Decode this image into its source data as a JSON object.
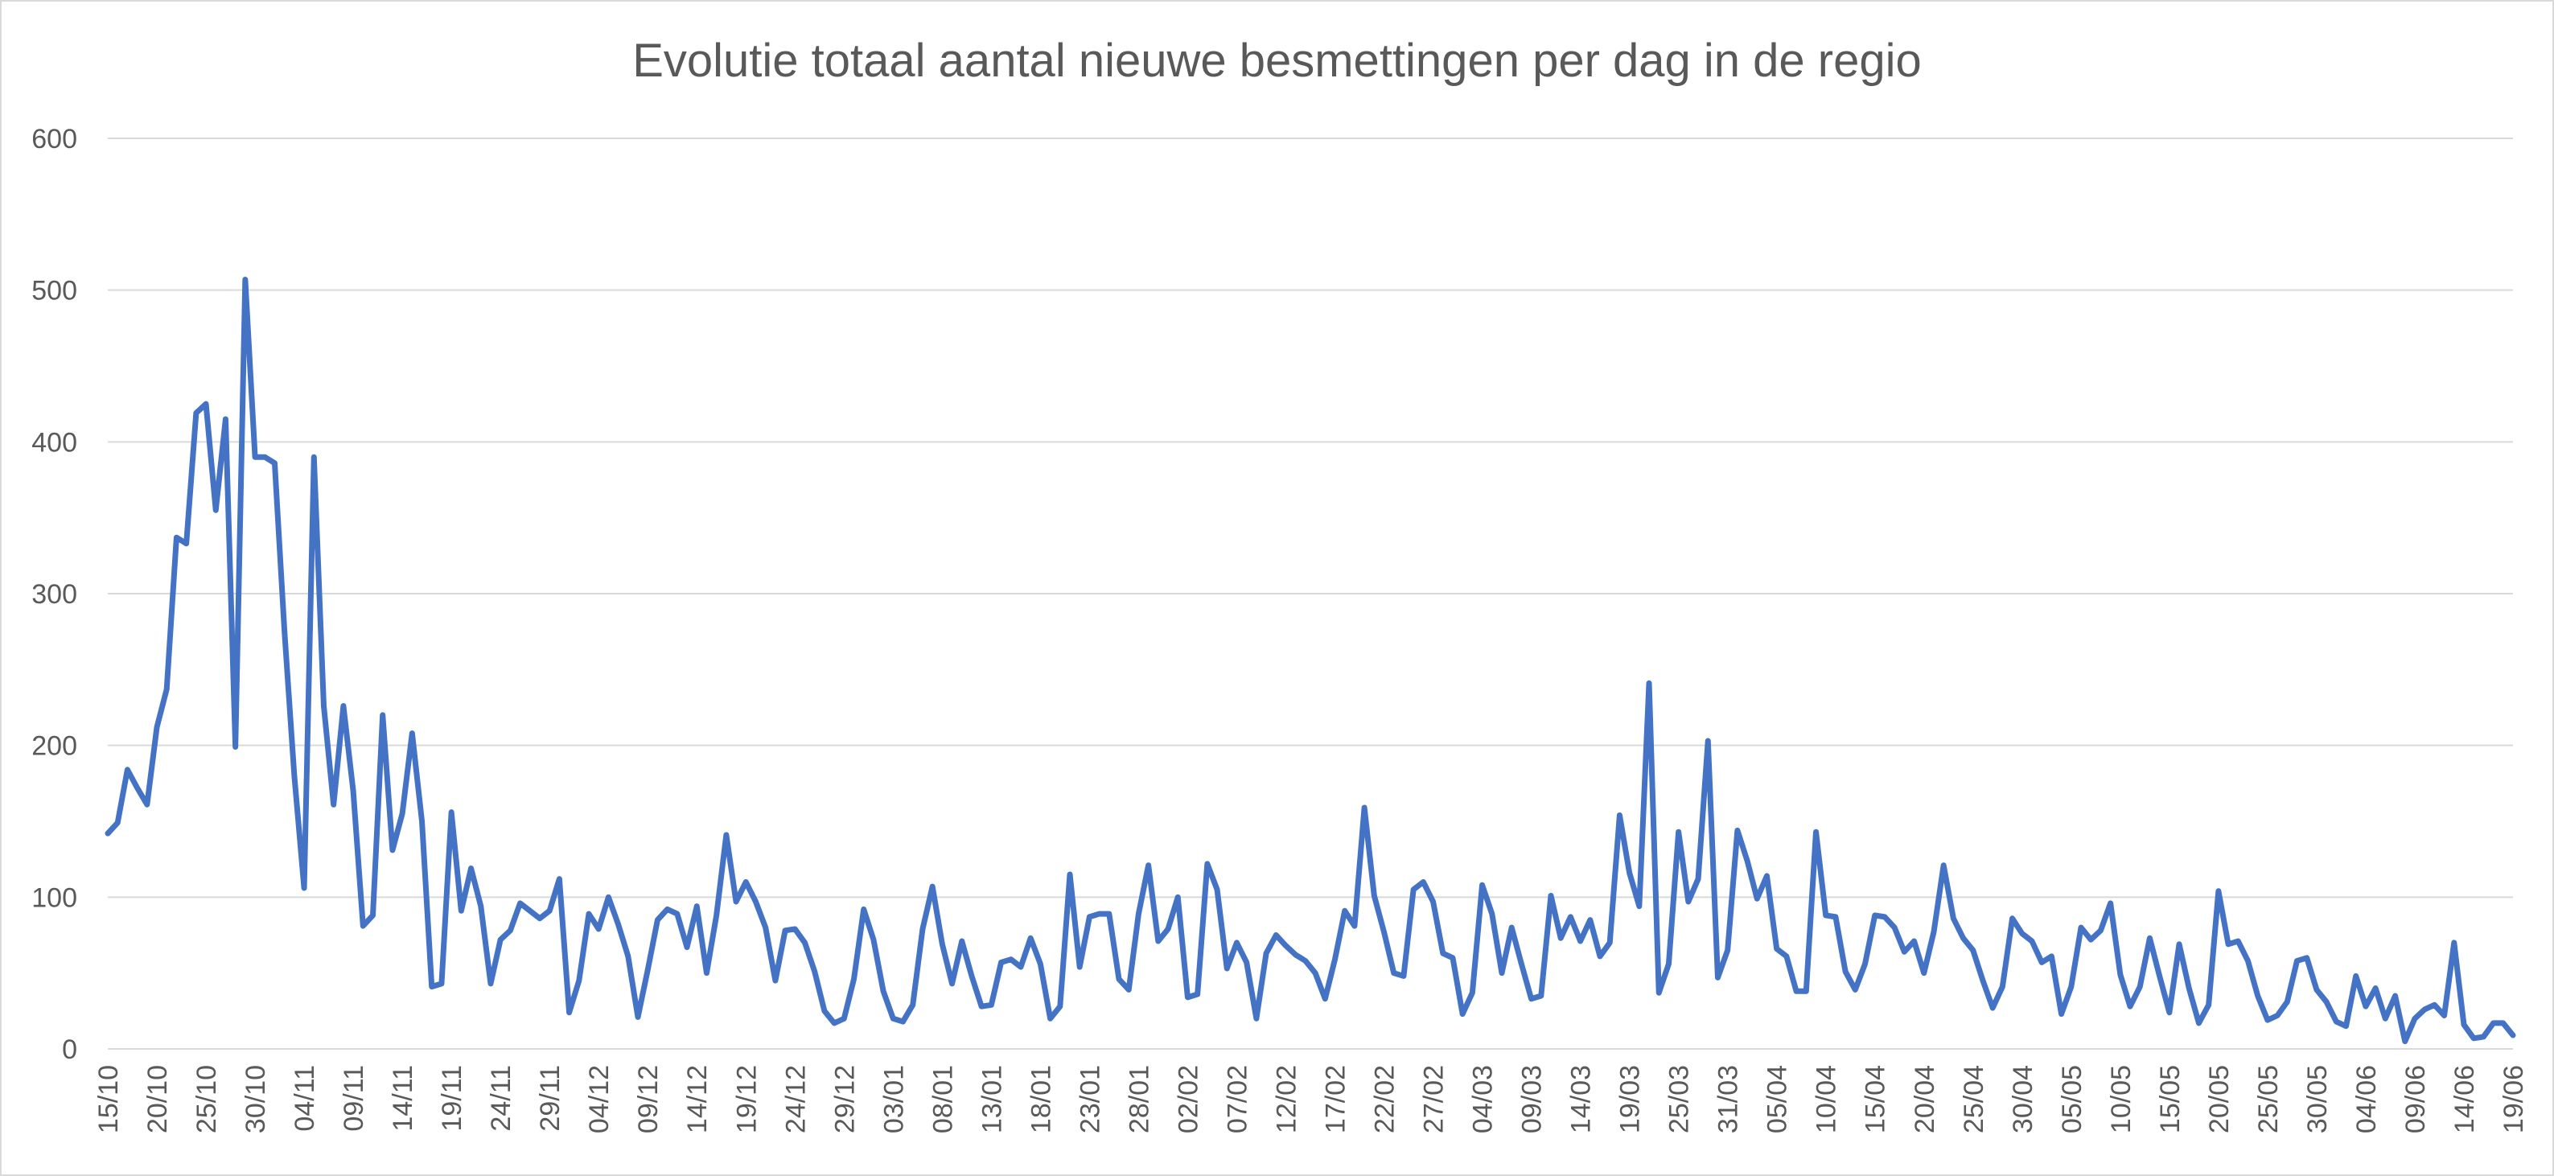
{
  "chart_data": {
    "type": "line",
    "title": "Evolutie totaal aantal nieuwe besmettingen per dag in de regio",
    "xlabel": "",
    "ylabel": "",
    "ylim": [
      0,
      600
    ],
    "yticks": [
      0,
      100,
      200,
      300,
      400,
      500,
      600
    ],
    "grid": true,
    "legend": "none",
    "line_color": "#4472c4",
    "grid_color": "#d9d9d9",
    "text_color": "#595959",
    "x_start": "15/10",
    "x_end": "19/06",
    "x_tick_labels": [
      "15/10",
      "20/10",
      "25/10",
      "30/10",
      "04/11",
      "09/11",
      "14/11",
      "19/11",
      "24/11",
      "29/11",
      "04/12",
      "09/12",
      "14/12",
      "19/12",
      "24/12",
      "29/12",
      "03/01",
      "08/01",
      "13/01",
      "18/01",
      "23/01",
      "28/01",
      "02/02",
      "07/02",
      "12/02",
      "17/02",
      "22/02",
      "27/02",
      "04/03",
      "09/03",
      "14/03",
      "19/03",
      "25/03",
      "31/03",
      "05/04",
      "10/04",
      "15/04",
      "20/04",
      "25/04",
      "30/04",
      "05/05",
      "10/05",
      "15/05",
      "20/05",
      "25/05",
      "30/05",
      "04/06",
      "09/06",
      "14/06",
      "19/06"
    ],
    "values": [
      142,
      149,
      184,
      172,
      161,
      212,
      237,
      337,
      333,
      419,
      425,
      355,
      415,
      199,
      507,
      390,
      390,
      386,
      275,
      180,
      106,
      390,
      226,
      161,
      226,
      170,
      81,
      88,
      220,
      131,
      155,
      208,
      150,
      41,
      43,
      156,
      91,
      119,
      94,
      43,
      72,
      78,
      96,
      91,
      86,
      91,
      112,
      24,
      45,
      89,
      79,
      100,
      82,
      61,
      21,
      52,
      85,
      92,
      89,
      67,
      94,
      50,
      88,
      141,
      97,
      110,
      97,
      80,
      45,
      78,
      79,
      70,
      51,
      25,
      17,
      20,
      46,
      92,
      72,
      38,
      20,
      18,
      29,
      79,
      107,
      69,
      43,
      71,
      48,
      28,
      29,
      57,
      59,
      54,
      73,
      56,
      20,
      28,
      115,
      54,
      87,
      89,
      89,
      46,
      39,
      89,
      121,
      71,
      79,
      100,
      34,
      36,
      122,
      105,
      53,
      70,
      57,
      20,
      63,
      75,
      68,
      62,
      58,
      50,
      33,
      59,
      91,
      81,
      159,
      101,
      77,
      50,
      48,
      105,
      110,
      97,
      63,
      60,
      23,
      37,
      108,
      89,
      50,
      80,
      56,
      33,
      35,
      101,
      73,
      87,
      71,
      85,
      61,
      70,
      154,
      116,
      94,
      241,
      37,
      56,
      143,
      97,
      112,
      203,
      47,
      65,
      144,
      124,
      99,
      114,
      66,
      61,
      38,
      38,
      143,
      88,
      87,
      51,
      39,
      56,
      88,
      87,
      80,
      64,
      71,
      50,
      77,
      121,
      86,
      73,
      65,
      45,
      27,
      41,
      86,
      76,
      71,
      57,
      61,
      23,
      41,
      80,
      72,
      78,
      96,
      49,
      28,
      41,
      73,
      48,
      24,
      69,
      40,
      17,
      29,
      104,
      69,
      71,
      58,
      35,
      19,
      22,
      31,
      58,
      60,
      39,
      31,
      18,
      15,
      48,
      28,
      40,
      20,
      35,
      5,
      20,
      26,
      29,
      22,
      70,
      16,
      7,
      8,
      17,
      17,
      9
    ]
  }
}
